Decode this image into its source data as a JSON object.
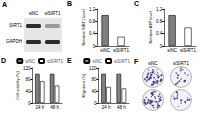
{
  "chart_data": [
    {
      "type": "bar",
      "title": "B",
      "ylabel": "Relative SIRT1 level",
      "categories": [
        "siNC",
        "siSIRT1"
      ],
      "values": [
        1.0,
        0.3
      ],
      "colors": [
        "#808080",
        "#ffffff"
      ],
      "ylim": [
        0,
        1.2
      ],
      "yticks": [
        0,
        0.4,
        0.8,
        1.2
      ],
      "grid": false
    },
    {
      "type": "bar",
      "title": "C",
      "ylabel": "Relative ATP level",
      "categories": [
        "siNC",
        "siSIRT1"
      ],
      "values": [
        1.0,
        0.6
      ],
      "colors": [
        "#808080",
        "#ffffff"
      ],
      "ylim": [
        0,
        1.2
      ],
      "yticks": [
        0,
        0.4,
        0.8,
        1.2
      ],
      "grid": false
    },
    {
      "type": "bar",
      "title": "D",
      "ylabel": "Cell viability (%)",
      "categories": [
        "24 h",
        "48 h"
      ],
      "legend": "top-right",
      "series": [
        {
          "name": "siNC",
          "color": "#808080",
          "values": [
            100,
            100
          ]
        },
        {
          "name": "siSIRT1",
          "color": "#ffffff",
          "values": [
            75,
            60
          ]
        }
      ],
      "ylim": [
        0,
        120
      ],
      "yticks": [
        0,
        40,
        80,
        120
      ],
      "grid": false
    },
    {
      "type": "bar",
      "title": "E",
      "ylabel": "Migration (%)",
      "categories": [
        "24 h",
        "48 h"
      ],
      "legend": "top-right",
      "series": [
        {
          "name": "siNC",
          "color": "#808080",
          "values": [
            100,
            100
          ]
        },
        {
          "name": "siSIRT1",
          "color": "#ffffff",
          "values": [
            55,
            50
          ]
        }
      ],
      "ylim": [
        0,
        120
      ],
      "yticks": [
        0,
        40,
        80,
        120
      ],
      "grid": false
    }
  ],
  "blot": {
    "title": "A",
    "columns": [
      "siNC",
      "siSIRT1"
    ],
    "rows": [
      "SIRT1",
      "GAPDH"
    ]
  },
  "colonies": {
    "title": "F",
    "labels": [
      "siNC",
      "siSIRT1"
    ]
  }
}
